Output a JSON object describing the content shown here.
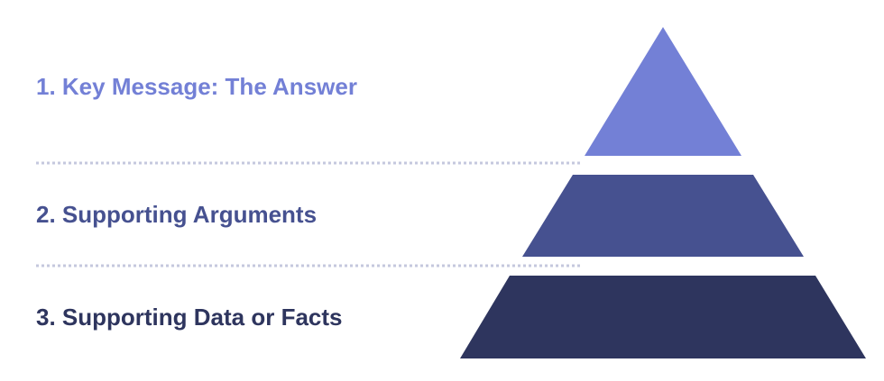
{
  "levels": [
    {
      "label": "1. Key Message: The Answer",
      "color": "#7380d6"
    },
    {
      "label": "2. Supporting Arguments",
      "color": "#465190"
    },
    {
      "label": "3. Supporting Data or Facts",
      "color": "#2e355e"
    }
  ],
  "divider_color": "#c5c8de"
}
